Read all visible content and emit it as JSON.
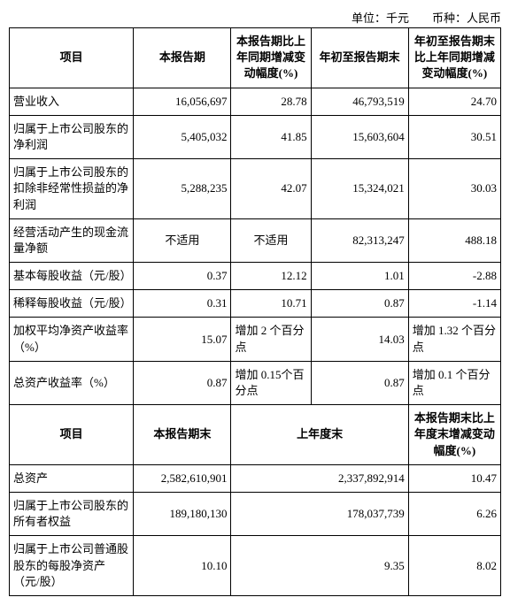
{
  "unit_line": "单位：千元　　币种：人民币",
  "header1": {
    "c0": "项目",
    "c1": "本报告期",
    "c2": "本报告期比上年同期增减变动幅度(%)",
    "c3": "年初至报告期末",
    "c4": "年初至报告期末比上年同期增减变动幅度(%)"
  },
  "rows1": [
    {
      "label": "营业收入",
      "a": "16,056,697",
      "b": "28.78",
      "c": "46,793,519",
      "d": "24.70"
    },
    {
      "label": "归属于上市公司股东的净利润",
      "a": "5,405,032",
      "b": "41.85",
      "c": "15,603,604",
      "d": "30.51"
    },
    {
      "label": "归属于上市公司股东的扣除非经常性损益的净利润",
      "a": "5,288,235",
      "b": "42.07",
      "c": "15,324,021",
      "d": "30.03"
    },
    {
      "label": "经营活动产生的现金流量净额",
      "a": "不适用",
      "b": "不适用",
      "c": "82,313,247",
      "d": "488.18"
    },
    {
      "label": "基本每股收益（元/股）",
      "a": "0.37",
      "b": "12.12",
      "c": "1.01",
      "d": "-2.88"
    },
    {
      "label": "稀释每股收益（元/股）",
      "a": "0.31",
      "b": "10.71",
      "c": "0.87",
      "d": "-1.14"
    },
    {
      "label": "加权平均净资产收益率（%）",
      "a": "15.07",
      "b": "增加 2 个百分点",
      "c": "14.03",
      "d": "增加 1.32 个百分点"
    },
    {
      "label": "总资产收益率（%）",
      "a": "0.87",
      "b": "增加 0.15个百分点",
      "c": "0.87",
      "d": "增加 0.1 个百分点"
    }
  ],
  "header2": {
    "c0": "项目",
    "c1": "本报告期末",
    "c2": "上年度末",
    "c3": "本报告期末比上年度末增减变动幅度(%)"
  },
  "rows2": [
    {
      "label": "总资产",
      "a": "2,582,610,901",
      "b": "2,337,892,914",
      "c": "10.47"
    },
    {
      "label": "归属于上市公司股东的所有者权益",
      "a": "189,180,130",
      "b": "178,037,739",
      "c": "6.26"
    },
    {
      "label": "归属于上市公司普通股股东的每股净资产（元/股）",
      "a": "10.10",
      "b": "9.35",
      "c": "8.02"
    }
  ],
  "colwidths": {
    "c0": 140,
    "c1": 110,
    "c2": 90,
    "c3": 110,
    "c4": 104
  }
}
